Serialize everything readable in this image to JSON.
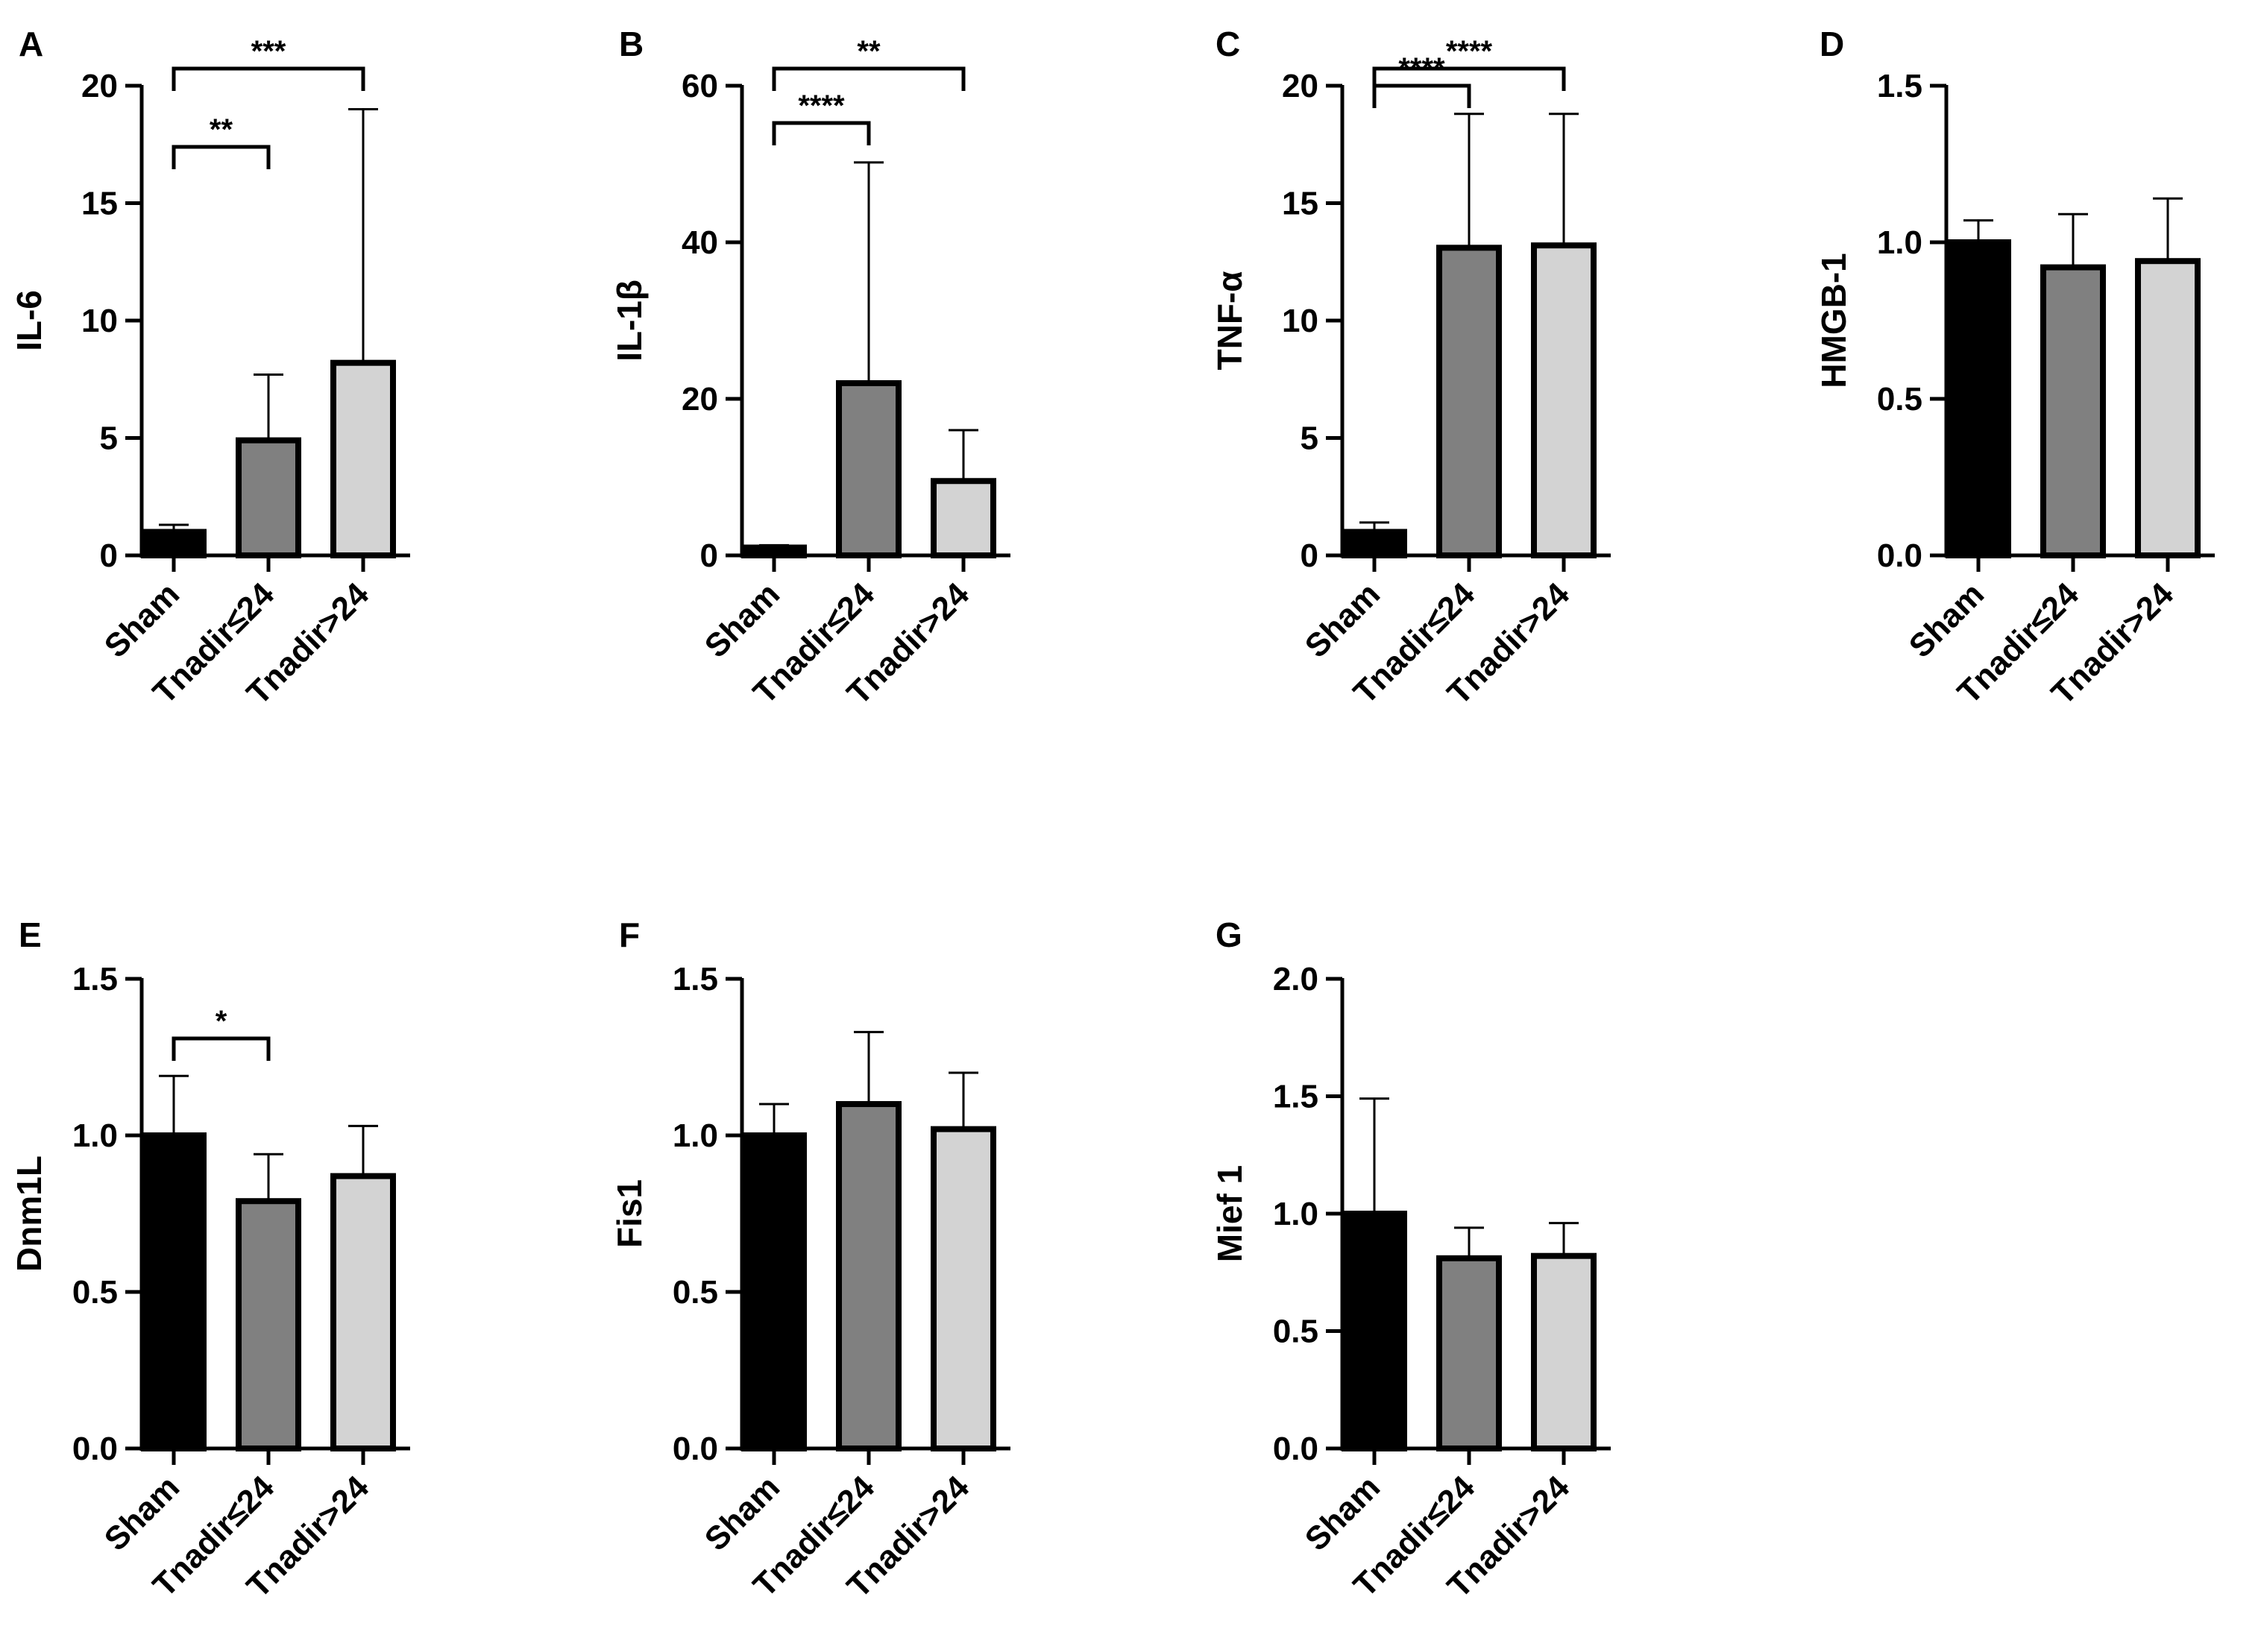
{
  "figure": {
    "categories": [
      "Sham",
      "Tnadir≤24",
      "Tnadir>24"
    ],
    "colors": {
      "Sham": "#000000",
      "Tnadir≤24": "#808080",
      "Tnadir>24": "#d3d3d3",
      "axis": "#000000"
    }
  },
  "chart_data": [
    {
      "panel": "A",
      "type": "bar",
      "ylabel": "IL-6",
      "categories": [
        "Sham",
        "Tnadir≤24",
        "Tnadir>24"
      ],
      "values": [
        1.0,
        4.9,
        8.2
      ],
      "errors": [
        0.3,
        2.8,
        10.8
      ],
      "ylim": [
        0,
        20
      ],
      "yticks": [
        0,
        5,
        10,
        15,
        20
      ],
      "tick_labels": [
        "0",
        "5",
        "10",
        "15",
        "20"
      ],
      "significance": [
        {
          "from": 0,
          "to": 1,
          "label": "**"
        },
        {
          "from": 0,
          "to": 2,
          "label": "***"
        }
      ]
    },
    {
      "panel": "B",
      "type": "bar",
      "ylabel": "IL-1β",
      "categories": [
        "Sham",
        "Tnadir≤24",
        "Tnadir>24"
      ],
      "values": [
        1.0,
        22.0,
        9.5
      ],
      "errors": [
        0.3,
        28.2,
        6.5
      ],
      "ylim": [
        0,
        60
      ],
      "yticks": [
        0,
        20,
        40,
        60
      ],
      "tick_labels": [
        "0",
        "20",
        "40",
        "60"
      ],
      "significance": [
        {
          "from": 0,
          "to": 1,
          "label": "****"
        },
        {
          "from": 0,
          "to": 2,
          "label": "**"
        }
      ]
    },
    {
      "panel": "C",
      "type": "bar",
      "ylabel": "TNF-α",
      "categories": [
        "Sham",
        "Tnadir≤24",
        "Tnadir>24"
      ],
      "values": [
        1.0,
        13.1,
        13.2
      ],
      "errors": [
        0.4,
        5.7,
        5.6
      ],
      "ylim": [
        0,
        20
      ],
      "yticks": [
        0,
        5,
        10,
        15,
        20
      ],
      "tick_labels": [
        "0",
        "5",
        "10",
        "15",
        "20"
      ],
      "significance": [
        {
          "from": 0,
          "to": 1,
          "label": "****"
        },
        {
          "from": 0,
          "to": 2,
          "label": "****"
        }
      ]
    },
    {
      "panel": "D",
      "type": "bar",
      "ylabel": "HMGB-1",
      "categories": [
        "Sham",
        "Tnadir≤24",
        "Tnadir>24"
      ],
      "values": [
        1.0,
        0.92,
        0.94
      ],
      "errors": [
        0.07,
        0.17,
        0.2
      ],
      "ylim": [
        0,
        1.5
      ],
      "yticks": [
        0,
        0.5,
        1.0,
        1.5
      ],
      "tick_labels": [
        "0.0",
        "0.5",
        "1.0",
        "1.5"
      ],
      "significance": []
    },
    {
      "panel": "E",
      "type": "bar",
      "ylabel": "Dnm1L",
      "categories": [
        "Sham",
        "Tnadir≤24",
        "Tnadir>24"
      ],
      "values": [
        1.0,
        0.79,
        0.87
      ],
      "errors": [
        0.19,
        0.15,
        0.16
      ],
      "ylim": [
        0,
        1.5
      ],
      "yticks": [
        0,
        0.5,
        1.0,
        1.5
      ],
      "tick_labels": [
        "0.0",
        "0.5",
        "1.0",
        "1.5"
      ],
      "significance": [
        {
          "from": 0,
          "to": 1,
          "label": "*"
        }
      ]
    },
    {
      "panel": "F",
      "type": "bar",
      "ylabel": "Fis1",
      "categories": [
        "Sham",
        "Tnadir≤24",
        "Tnadir>24"
      ],
      "values": [
        1.0,
        1.1,
        1.02
      ],
      "errors": [
        0.1,
        0.23,
        0.18
      ],
      "ylim": [
        0,
        1.5
      ],
      "yticks": [
        0,
        0.5,
        1.0,
        1.5
      ],
      "tick_labels": [
        "0.0",
        "0.5",
        "1.0",
        "1.5"
      ],
      "significance": []
    },
    {
      "panel": "G",
      "type": "bar",
      "ylabel": "Mief 1",
      "categories": [
        "Sham",
        "Tnadir≤24",
        "Tnadir>24"
      ],
      "values": [
        1.0,
        0.81,
        0.82
      ],
      "errors": [
        0.49,
        0.13,
        0.14
      ],
      "ylim": [
        0,
        2.0
      ],
      "yticks": [
        0,
        0.5,
        1.0,
        1.5,
        2.0
      ],
      "tick_labels": [
        "0.0",
        "0.5",
        "1.0",
        "1.5",
        "2.0"
      ],
      "significance": []
    }
  ]
}
